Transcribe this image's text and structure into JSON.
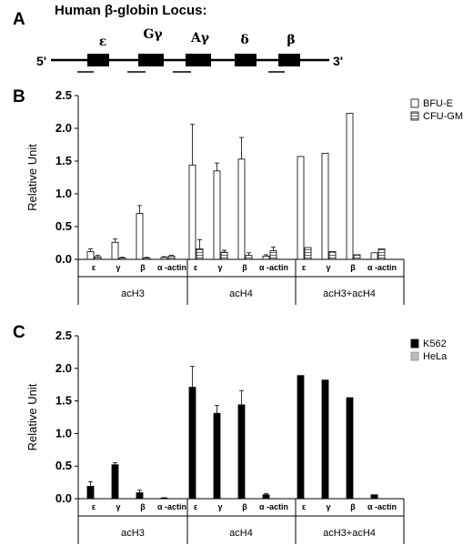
{
  "panel_a": {
    "letter": "A",
    "title": "Human β-globin Locus:",
    "five_prime": "5'",
    "three_prime": "3'",
    "genes": [
      "ε",
      "Gγ",
      "Aγ",
      "δ",
      "β"
    ]
  },
  "colors": {
    "bfu_e": "#ffffff",
    "cfu_gm": "#dcdcdc",
    "k562": "#000000",
    "hela": "#bdbdbd"
  },
  "chart_data": [
    {
      "panel": "B",
      "type": "bar",
      "ylabel": "Relative Unit",
      "ylim": [
        0,
        2.5
      ],
      "yticks": [
        "0.0",
        "0.5",
        "1.0",
        "1.5",
        "2.0",
        "2.5"
      ],
      "groups": [
        {
          "label": "acH3",
          "categories": [
            "ε",
            "γ",
            "β",
            "α -actin"
          ]
        },
        {
          "label": "acH4",
          "categories": [
            "ε",
            "γ",
            "β",
            "α -actin"
          ]
        },
        {
          "label": "acH3+acH4",
          "categories": [
            "ε",
            "γ",
            "β",
            "α -actin"
          ]
        }
      ],
      "legend": [
        "BFU-E",
        "CFU-GM"
      ],
      "legend_position": "top-right",
      "series": [
        {
          "name": "BFU-E",
          "values": [
            0.12,
            0.26,
            0.7,
            0.03,
            1.44,
            1.35,
            1.53,
            0.05,
            1.57,
            1.62,
            2.23,
            0.1
          ],
          "errors": [
            0.04,
            0.05,
            0.12,
            0.01,
            0.62,
            0.12,
            0.33,
            0.02,
            null,
            null,
            null,
            null
          ]
        },
        {
          "name": "CFU-GM",
          "values": [
            0.04,
            0.02,
            0.02,
            0.05,
            0.16,
            0.11,
            0.06,
            0.13,
            0.18,
            0.12,
            0.07,
            0.16
          ],
          "errors": [
            0.02,
            0.01,
            0.01,
            0.01,
            0.14,
            0.03,
            0.04,
            0.06,
            null,
            null,
            null,
            null
          ]
        }
      ]
    },
    {
      "panel": "C",
      "type": "bar",
      "ylabel": "Relative Unit",
      "ylim": [
        0,
        2.5
      ],
      "yticks": [
        "0.0",
        "0.5",
        "1.0",
        "1.5",
        "2.0",
        "2.5"
      ],
      "groups": [
        {
          "label": "acH3",
          "categories": [
            "ε",
            "γ",
            "β",
            "α -actin"
          ]
        },
        {
          "label": "acH4",
          "categories": [
            "ε",
            "γ",
            "β",
            "α -actin"
          ]
        },
        {
          "label": "acH3+acH4",
          "categories": [
            "ε",
            "γ",
            "β",
            "α -actin"
          ]
        }
      ],
      "legend": [
        "K562",
        "HeLa"
      ],
      "legend_position": "top-right",
      "series": [
        {
          "name": "K562",
          "values": [
            0.19,
            0.52,
            0.09,
            0.01,
            1.71,
            1.31,
            1.44,
            0.06,
            1.89,
            1.82,
            1.55,
            0.06
          ],
          "errors": [
            0.07,
            0.03,
            0.04,
            0.005,
            0.32,
            0.12,
            0.22,
            0.02,
            null,
            null,
            null,
            null
          ]
        },
        {
          "name": "HeLa",
          "values": [
            0,
            0,
            0,
            0,
            0,
            0,
            0,
            0,
            0,
            0,
            0,
            0
          ],
          "errors": [
            null,
            null,
            null,
            null,
            null,
            null,
            null,
            null,
            null,
            null,
            null,
            null
          ]
        }
      ]
    }
  ]
}
